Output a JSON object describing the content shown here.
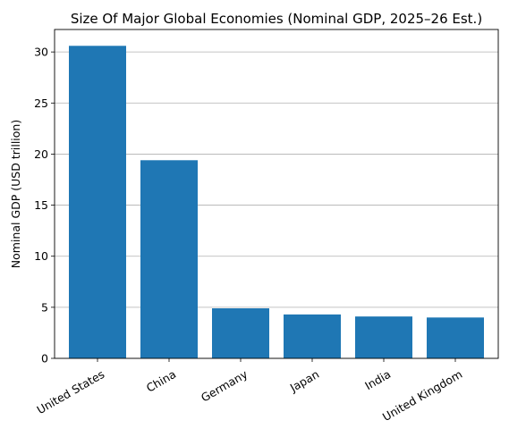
{
  "chart_data": {
    "type": "bar",
    "title": "Size Of Major Global Economies (Nominal GDP, 2025–26 Est.)",
    "xlabel": "",
    "ylabel": "Nominal GDP (USD trillion)",
    "categories": [
      "United States",
      "China",
      "Germany",
      "Japan",
      "India",
      "United Kingdom"
    ],
    "values": [
      30.6,
      19.4,
      4.9,
      4.3,
      4.1,
      4.0
    ],
    "ylim": [
      0,
      32.2
    ],
    "yticks": [
      0,
      5,
      10,
      15,
      20,
      25,
      30
    ],
    "ytick_labels": [
      "0",
      "5",
      "10",
      "15",
      "20",
      "25",
      "30"
    ],
    "grid": "y",
    "legend": "none",
    "bar_color": "#1f77b4",
    "grid_color": "#b0b0b0"
  }
}
